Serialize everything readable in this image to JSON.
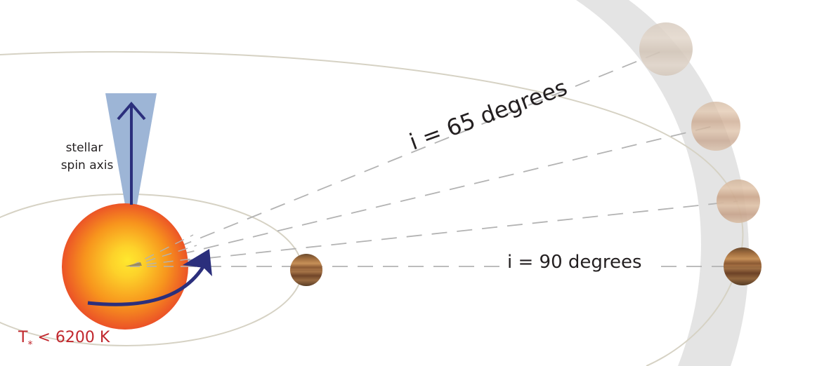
{
  "labels": {
    "spin_axis_line1": "stellar",
    "spin_axis_line2": "spin axis",
    "temperature_main": "T",
    "temperature_subscript": "*",
    "temperature_rest": " < 6200 K",
    "inclination_65": "i = 65 degrees",
    "inclination_90": "i = 90 degrees"
  },
  "colors": {
    "star_core": "#ffe033",
    "star_mid": "#f7941d",
    "star_edge": "#e8402a",
    "spin_cone": "#9db5d6",
    "arrow": "#2b2f7c",
    "temperature_text": "#c1272d",
    "text": "#231f20",
    "orbit": "#d6d2c4",
    "band": "#e4e4e4",
    "dash": "#b3b3b3"
  },
  "icons": {
    "spin_arrow": "up-arrow-icon",
    "rotation_arrow": "curved-arrow-icon"
  }
}
